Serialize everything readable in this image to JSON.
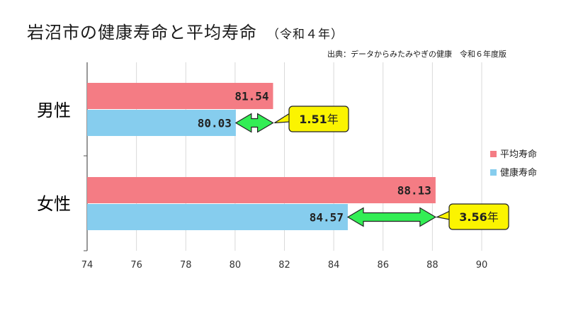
{
  "title": "岩沼市の健康寿命と平均寿命",
  "subtitle": "（令和４年）",
  "source": "出典：データからみたみやぎの健康　令和６年度版",
  "colors": {
    "average": "#f47c84",
    "healthy": "#86cdee",
    "arrow": "#33ee55",
    "callout": "#fbf400"
  },
  "chart_data": {
    "type": "bar",
    "orientation": "horizontal",
    "categories": [
      "男性",
      "女性"
    ],
    "series": [
      {
        "name": "平均寿命",
        "values": [
          81.54,
          88.13
        ]
      },
      {
        "name": "健康寿命",
        "values": [
          80.03,
          84.57
        ]
      }
    ],
    "value_labels": {
      "average": [
        "81.54",
        "88.13"
      ],
      "healthy": [
        "80.03",
        "84.57"
      ]
    },
    "differences": [
      {
        "value": "1.51",
        "unit": "年"
      },
      {
        "value": "3.56",
        "unit": "年"
      }
    ],
    "xlim": [
      74,
      90
    ],
    "xticks": [
      74,
      76,
      78,
      80,
      82,
      84,
      86,
      88,
      90
    ],
    "legend": "right"
  }
}
